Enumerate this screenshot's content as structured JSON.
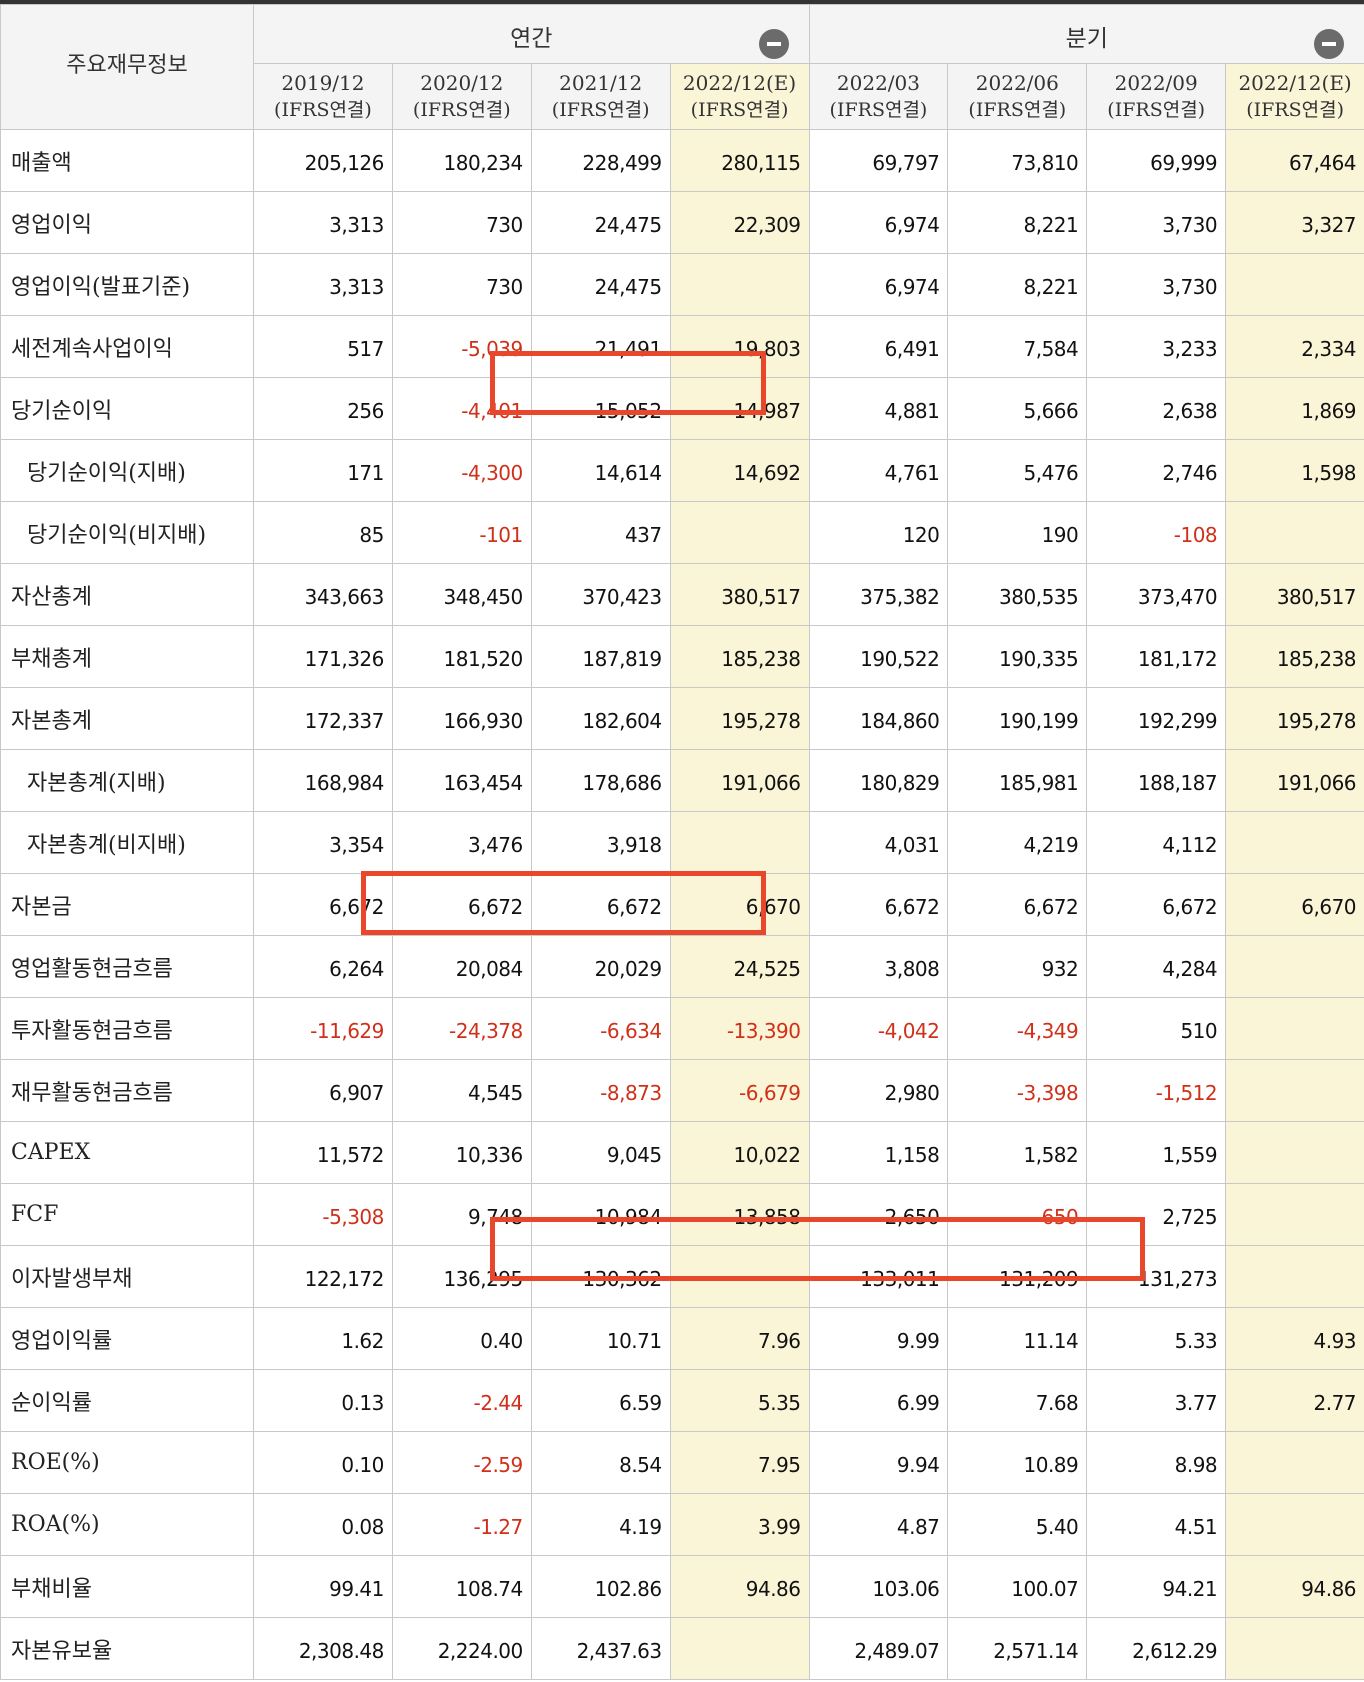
{
  "table": {
    "corner_label": "주요재무정보",
    "groups": [
      {
        "label": "연간"
      },
      {
        "label": "분기"
      }
    ],
    "columns": [
      {
        "period": "2019/12",
        "basis": "(IFRS연결)",
        "estimate": false
      },
      {
        "period": "2020/12",
        "basis": "(IFRS연결)",
        "estimate": false
      },
      {
        "period": "2021/12",
        "basis": "(IFRS연결)",
        "estimate": false
      },
      {
        "period": "2022/12(E)",
        "basis": "(IFRS연결)",
        "estimate": true
      },
      {
        "period": "2022/03",
        "basis": "(IFRS연결)",
        "estimate": false
      },
      {
        "period": "2022/06",
        "basis": "(IFRS연결)",
        "estimate": false
      },
      {
        "period": "2022/09",
        "basis": "(IFRS연결)",
        "estimate": false
      },
      {
        "period": "2022/12(E)",
        "basis": "(IFRS연결)",
        "estimate": true
      }
    ],
    "rows": [
      {
        "label": "매출액",
        "indent": false,
        "values": [
          "205,126",
          "180,234",
          "228,499",
          "280,115",
          "69,797",
          "73,810",
          "69,999",
          "67,464"
        ]
      },
      {
        "label": "영업이익",
        "indent": false,
        "values": [
          "3,313",
          "730",
          "24,475",
          "22,309",
          "6,974",
          "8,221",
          "3,730",
          "3,327"
        ]
      },
      {
        "label": "영업이익(발표기준)",
        "indent": false,
        "values": [
          "3,313",
          "730",
          "24,475",
          "",
          "6,974",
          "8,221",
          "3,730",
          ""
        ]
      },
      {
        "label": "세전계속사업이익",
        "indent": false,
        "values": [
          "517",
          "-5,039",
          "21,491",
          "19,803",
          "6,491",
          "7,584",
          "3,233",
          "2,334"
        ]
      },
      {
        "label": "당기순이익",
        "indent": false,
        "values": [
          "256",
          "-4,401",
          "15,052",
          "14,987",
          "4,881",
          "5,666",
          "2,638",
          "1,869"
        ]
      },
      {
        "label": "당기순이익(지배)",
        "indent": true,
        "values": [
          "171",
          "-4,300",
          "14,614",
          "14,692",
          "4,761",
          "5,476",
          "2,746",
          "1,598"
        ]
      },
      {
        "label": "당기순이익(비지배)",
        "indent": true,
        "values": [
          "85",
          "-101",
          "437",
          "",
          "120",
          "190",
          "-108",
          ""
        ]
      },
      {
        "label": "자산총계",
        "indent": false,
        "values": [
          "343,663",
          "348,450",
          "370,423",
          "380,517",
          "375,382",
          "380,535",
          "373,470",
          "380,517"
        ]
      },
      {
        "label": "부채총계",
        "indent": false,
        "values": [
          "171,326",
          "181,520",
          "187,819",
          "185,238",
          "190,522",
          "190,335",
          "181,172",
          "185,238"
        ]
      },
      {
        "label": "자본총계",
        "indent": false,
        "values": [
          "172,337",
          "166,930",
          "182,604",
          "195,278",
          "184,860",
          "190,199",
          "192,299",
          "195,278"
        ]
      },
      {
        "label": "자본총계(지배)",
        "indent": true,
        "values": [
          "168,984",
          "163,454",
          "178,686",
          "191,066",
          "180,829",
          "185,981",
          "188,187",
          "191,066"
        ]
      },
      {
        "label": "자본총계(비지배)",
        "indent": true,
        "values": [
          "3,354",
          "3,476",
          "3,918",
          "",
          "4,031",
          "4,219",
          "4,112",
          ""
        ]
      },
      {
        "label": "자본금",
        "indent": false,
        "values": [
          "6,672",
          "6,672",
          "6,672",
          "6,670",
          "6,672",
          "6,672",
          "6,672",
          "6,670"
        ]
      },
      {
        "label": "영업활동현금흐름",
        "indent": false,
        "values": [
          "6,264",
          "20,084",
          "20,029",
          "24,525",
          "3,808",
          "932",
          "4,284",
          ""
        ]
      },
      {
        "label": "투자활동현금흐름",
        "indent": false,
        "values": [
          "-11,629",
          "-24,378",
          "-6,634",
          "-13,390",
          "-4,042",
          "-4,349",
          "510",
          ""
        ]
      },
      {
        "label": "재무활동현금흐름",
        "indent": false,
        "values": [
          "6,907",
          "4,545",
          "-8,873",
          "-6,679",
          "2,980",
          "-3,398",
          "-1,512",
          ""
        ]
      },
      {
        "label": "CAPEX",
        "indent": false,
        "values": [
          "11,572",
          "10,336",
          "9,045",
          "10,022",
          "1,158",
          "1,582",
          "1,559",
          ""
        ]
      },
      {
        "label": "FCF",
        "indent": false,
        "values": [
          "-5,308",
          "9,748",
          "10,984",
          "13,858",
          "2,650",
          "-650",
          "2,725",
          ""
        ]
      },
      {
        "label": "이자발생부채",
        "indent": false,
        "values": [
          "122,172",
          "136,295",
          "130,362",
          "",
          "133,011",
          "131,209",
          "131,273",
          ""
        ]
      },
      {
        "label": "영업이익률",
        "indent": false,
        "values": [
          "1.62",
          "0.40",
          "10.71",
          "7.96",
          "9.99",
          "11.14",
          "5.33",
          "4.93"
        ]
      },
      {
        "label": "순이익률",
        "indent": false,
        "values": [
          "0.13",
          "-2.44",
          "6.59",
          "5.35",
          "6.99",
          "7.68",
          "3.77",
          "2.77"
        ]
      },
      {
        "label": "ROE(%)",
        "indent": false,
        "values": [
          "0.10",
          "-2.59",
          "8.54",
          "7.95",
          "9.94",
          "10.89",
          "8.98",
          ""
        ]
      },
      {
        "label": "ROA(%)",
        "indent": false,
        "values": [
          "0.08",
          "-1.27",
          "4.19",
          "3.99",
          "4.87",
          "5.40",
          "4.51",
          ""
        ]
      },
      {
        "label": "부채비율",
        "indent": false,
        "values": [
          "99.41",
          "108.74",
          "102.86",
          "94.86",
          "103.06",
          "100.07",
          "94.21",
          "94.86"
        ]
      },
      {
        "label": "자본유보율",
        "indent": false,
        "values": [
          "2,308.48",
          "2,224.00",
          "2,437.63",
          "",
          "2,489.07",
          "2,571.14",
          "2,612.29",
          ""
        ]
      }
    ]
  },
  "highlight_color": "#e8472b",
  "estimate_bg": "#fbf5d7",
  "negative_color": "#d0301a",
  "icons": {
    "collapse": "minus-circle-icon"
  }
}
